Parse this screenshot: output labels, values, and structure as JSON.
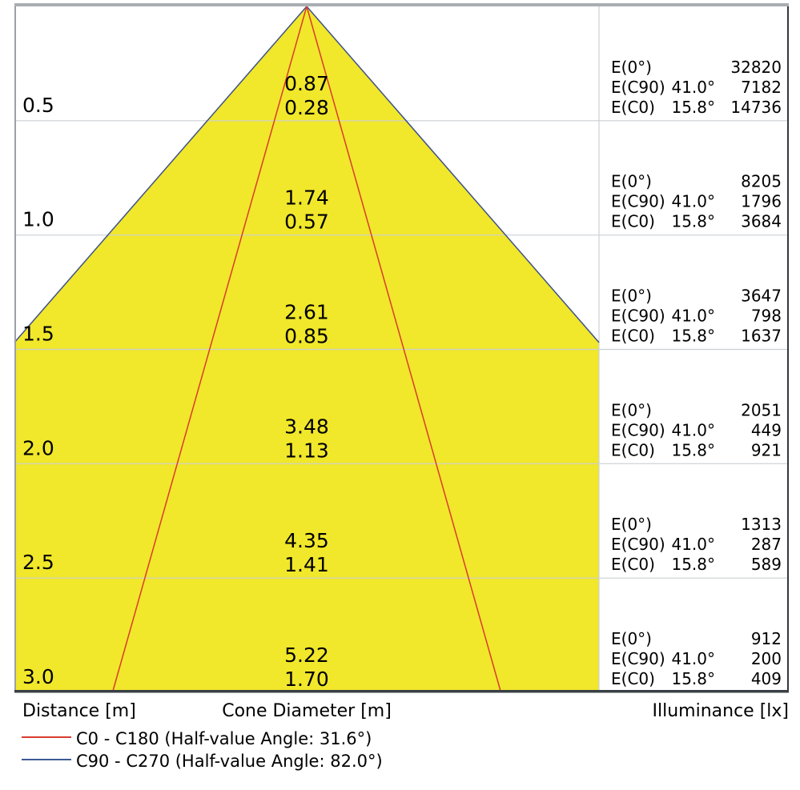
{
  "footer": {
    "distance_label": "Distance [m]",
    "cone_diameter_label": "Cone Diameter [m]",
    "illuminance_label": "Illuminance [lx]"
  },
  "legend": {
    "items": [
      {
        "name": "c0-c180",
        "label": "C0 - C180 (Half-value Angle: 31.6°)",
        "color": "#d93c2e"
      },
      {
        "name": "c90-c270",
        "label": "C90 - C270 (Half-value Angle: 82.0°)",
        "color": "#3e5a96"
      }
    ]
  },
  "colors": {
    "cone_fill": "#f1e72b",
    "c0_line": "#d93c2e",
    "c90_line": "#3e5287",
    "grid_line": "#cbd0d4",
    "top_border": "#a9aeb3",
    "left_border": "#9ba1a6",
    "right_border": "#33383d",
    "bottom_border": "#394045",
    "text": "#000000"
  },
  "chart_data": {
    "type": "area",
    "subtype": "light-cone-diagram",
    "ylabel": "Distance [m]",
    "xlabel": "Cone Diameter [m]",
    "y2label": "Illuminance [lx]",
    "distances_m": [
      0.5,
      1.0,
      1.5,
      2.0,
      2.5,
      3.0
    ],
    "distance_labels": [
      "0.5",
      "1.0",
      "1.5",
      "2.0",
      "2.5",
      "3.0"
    ],
    "series": [
      {
        "name": "C0 - C180",
        "half_value_angle_deg": 31.6,
        "beam_half_angle_deg": 15.8,
        "color": "#d93c2e",
        "cone_diameter_m": [
          "0.28",
          "0.57",
          "0.85",
          "1.13",
          "1.41",
          "1.70"
        ]
      },
      {
        "name": "C90 - C270",
        "half_value_angle_deg": 82.0,
        "beam_half_angle_deg": 41.0,
        "color": "#3e5287",
        "cone_diameter_m": [
          "0.87",
          "1.74",
          "2.61",
          "3.48",
          "4.35",
          "5.22"
        ]
      }
    ],
    "illuminance_lx": {
      "row_labels": [
        "E(0°)",
        "E(C90)",
        "E(C0)"
      ],
      "angles": [
        "",
        "41.0°",
        "15.8°"
      ],
      "values": [
        [
          32820,
          7182,
          14736
        ],
        [
          8205,
          1796,
          3684
        ],
        [
          3647,
          798,
          1637
        ],
        [
          2051,
          449,
          921
        ],
        [
          1313,
          287,
          589
        ],
        [
          912,
          200,
          409
        ]
      ]
    }
  }
}
